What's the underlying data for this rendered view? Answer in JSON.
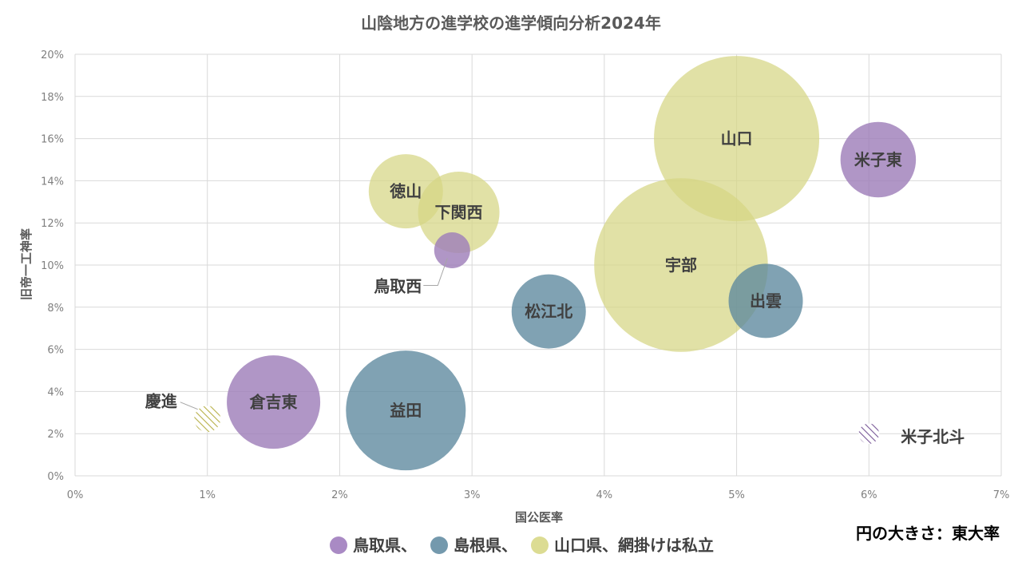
{
  "chart_data": {
    "type": "bubble",
    "title": "山陰地方の進学校の進学傾向分析2024年",
    "xlabel": "国公医率",
    "ylabel": "旧帝一工神率",
    "xlim": [
      0,
      7
    ],
    "ylim": [
      0,
      20
    ],
    "x_unit": "%",
    "y_unit": "%",
    "x_ticks": [
      "0%",
      "1%",
      "2%",
      "3%",
      "4%",
      "5%",
      "6%",
      "7%"
    ],
    "y_ticks": [
      "0%",
      "2%",
      "4%",
      "6%",
      "8%",
      "10%",
      "12%",
      "14%",
      "16%",
      "18%",
      "20%"
    ],
    "grid": true,
    "size_note": "円の大きさ：東大率",
    "legend_text": [
      "鳥取県、",
      "島根県、",
      "山口県、網掛けは私立"
    ],
    "colors": {
      "tottori": "#9f7fba",
      "shimane": "#6b96ab",
      "yamaguchi": "#dcdc93",
      "private_hatch": "#a8a032",
      "private_hatch_purple": "#7a5a98",
      "grid": "#d9d9d9"
    },
    "points": [
      {
        "name": "慶進",
        "x": 1.0,
        "y": 2.7,
        "size": 0.22,
        "group": "yamaguchi",
        "private": true,
        "label_outside": true
      },
      {
        "name": "倉吉東",
        "x": 1.5,
        "y": 3.5,
        "size": 0.78,
        "group": "tottori",
        "private": false
      },
      {
        "name": "益田",
        "x": 2.5,
        "y": 3.1,
        "size": 1.0,
        "group": "shimane",
        "private": false
      },
      {
        "name": "徳山",
        "x": 2.5,
        "y": 13.5,
        "size": 0.62,
        "group": "yamaguchi",
        "private": false
      },
      {
        "name": "下関西",
        "x": 2.9,
        "y": 12.5,
        "size": 0.68,
        "group": "yamaguchi",
        "private": false
      },
      {
        "name": "鳥取西",
        "x": 2.85,
        "y": 10.7,
        "size": 0.3,
        "group": "tottori",
        "private": false,
        "label_outside": true
      },
      {
        "name": "松江北",
        "x": 3.58,
        "y": 7.8,
        "size": 0.62,
        "group": "shimane",
        "private": false
      },
      {
        "name": "宇部",
        "x": 4.58,
        "y": 10.0,
        "size": 1.45,
        "group": "yamaguchi",
        "private": false
      },
      {
        "name": "山口",
        "x": 5.0,
        "y": 16.0,
        "size": 1.38,
        "group": "yamaguchi",
        "private": false
      },
      {
        "name": "出雲",
        "x": 5.22,
        "y": 8.3,
        "size": 0.62,
        "group": "shimane",
        "private": false
      },
      {
        "name": "米子東",
        "x": 6.07,
        "y": 15.0,
        "size": 0.63,
        "group": "tottori",
        "private": false
      },
      {
        "name": "米子北斗",
        "x": 6.0,
        "y": 2.0,
        "size": 0.17,
        "group": "tottori",
        "private": true,
        "label_outside": true
      }
    ]
  }
}
